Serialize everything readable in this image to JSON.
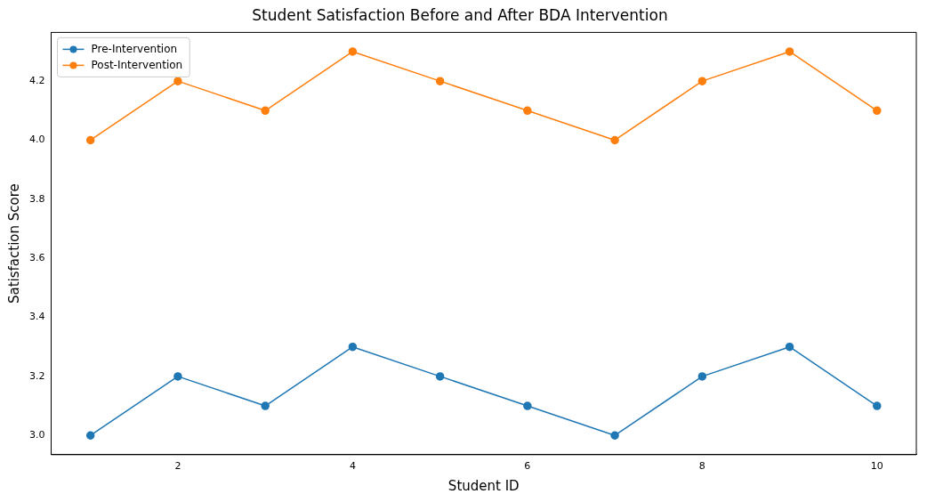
{
  "chart_data": {
    "type": "line",
    "title": "Student Satisfaction Before and After BDA Intervention",
    "xlabel": "Student ID",
    "ylabel": "Satisfaction Score",
    "x": [
      1,
      2,
      3,
      4,
      5,
      6,
      7,
      8,
      9,
      10
    ],
    "series": [
      {
        "name": "Pre-Intervention",
        "color": "#1f77b4",
        "values": [
          3.0,
          3.2,
          3.1,
          3.3,
          3.2,
          3.1,
          3.0,
          3.2,
          3.3,
          3.1
        ]
      },
      {
        "name": "Post-Intervention",
        "color": "#ff7f0e",
        "values": [
          4.0,
          4.2,
          4.1,
          4.3,
          4.2,
          4.1,
          4.0,
          4.2,
          4.3,
          4.1
        ]
      }
    ],
    "xlim": [
      0.55,
      10.45
    ],
    "xticks": [
      2,
      4,
      6,
      8,
      10
    ],
    "ylim": [
      2.935,
      4.365
    ],
    "yticks": [
      {
        "value": 3.0,
        "label": "3.0"
      },
      3.2,
      3.4,
      3.6,
      3.8,
      {
        "value": 4.0,
        "label": "4.0"
      },
      4.2
    ],
    "legend": "top left",
    "marker": "circle",
    "line_style": "solid",
    "grid": false
  }
}
